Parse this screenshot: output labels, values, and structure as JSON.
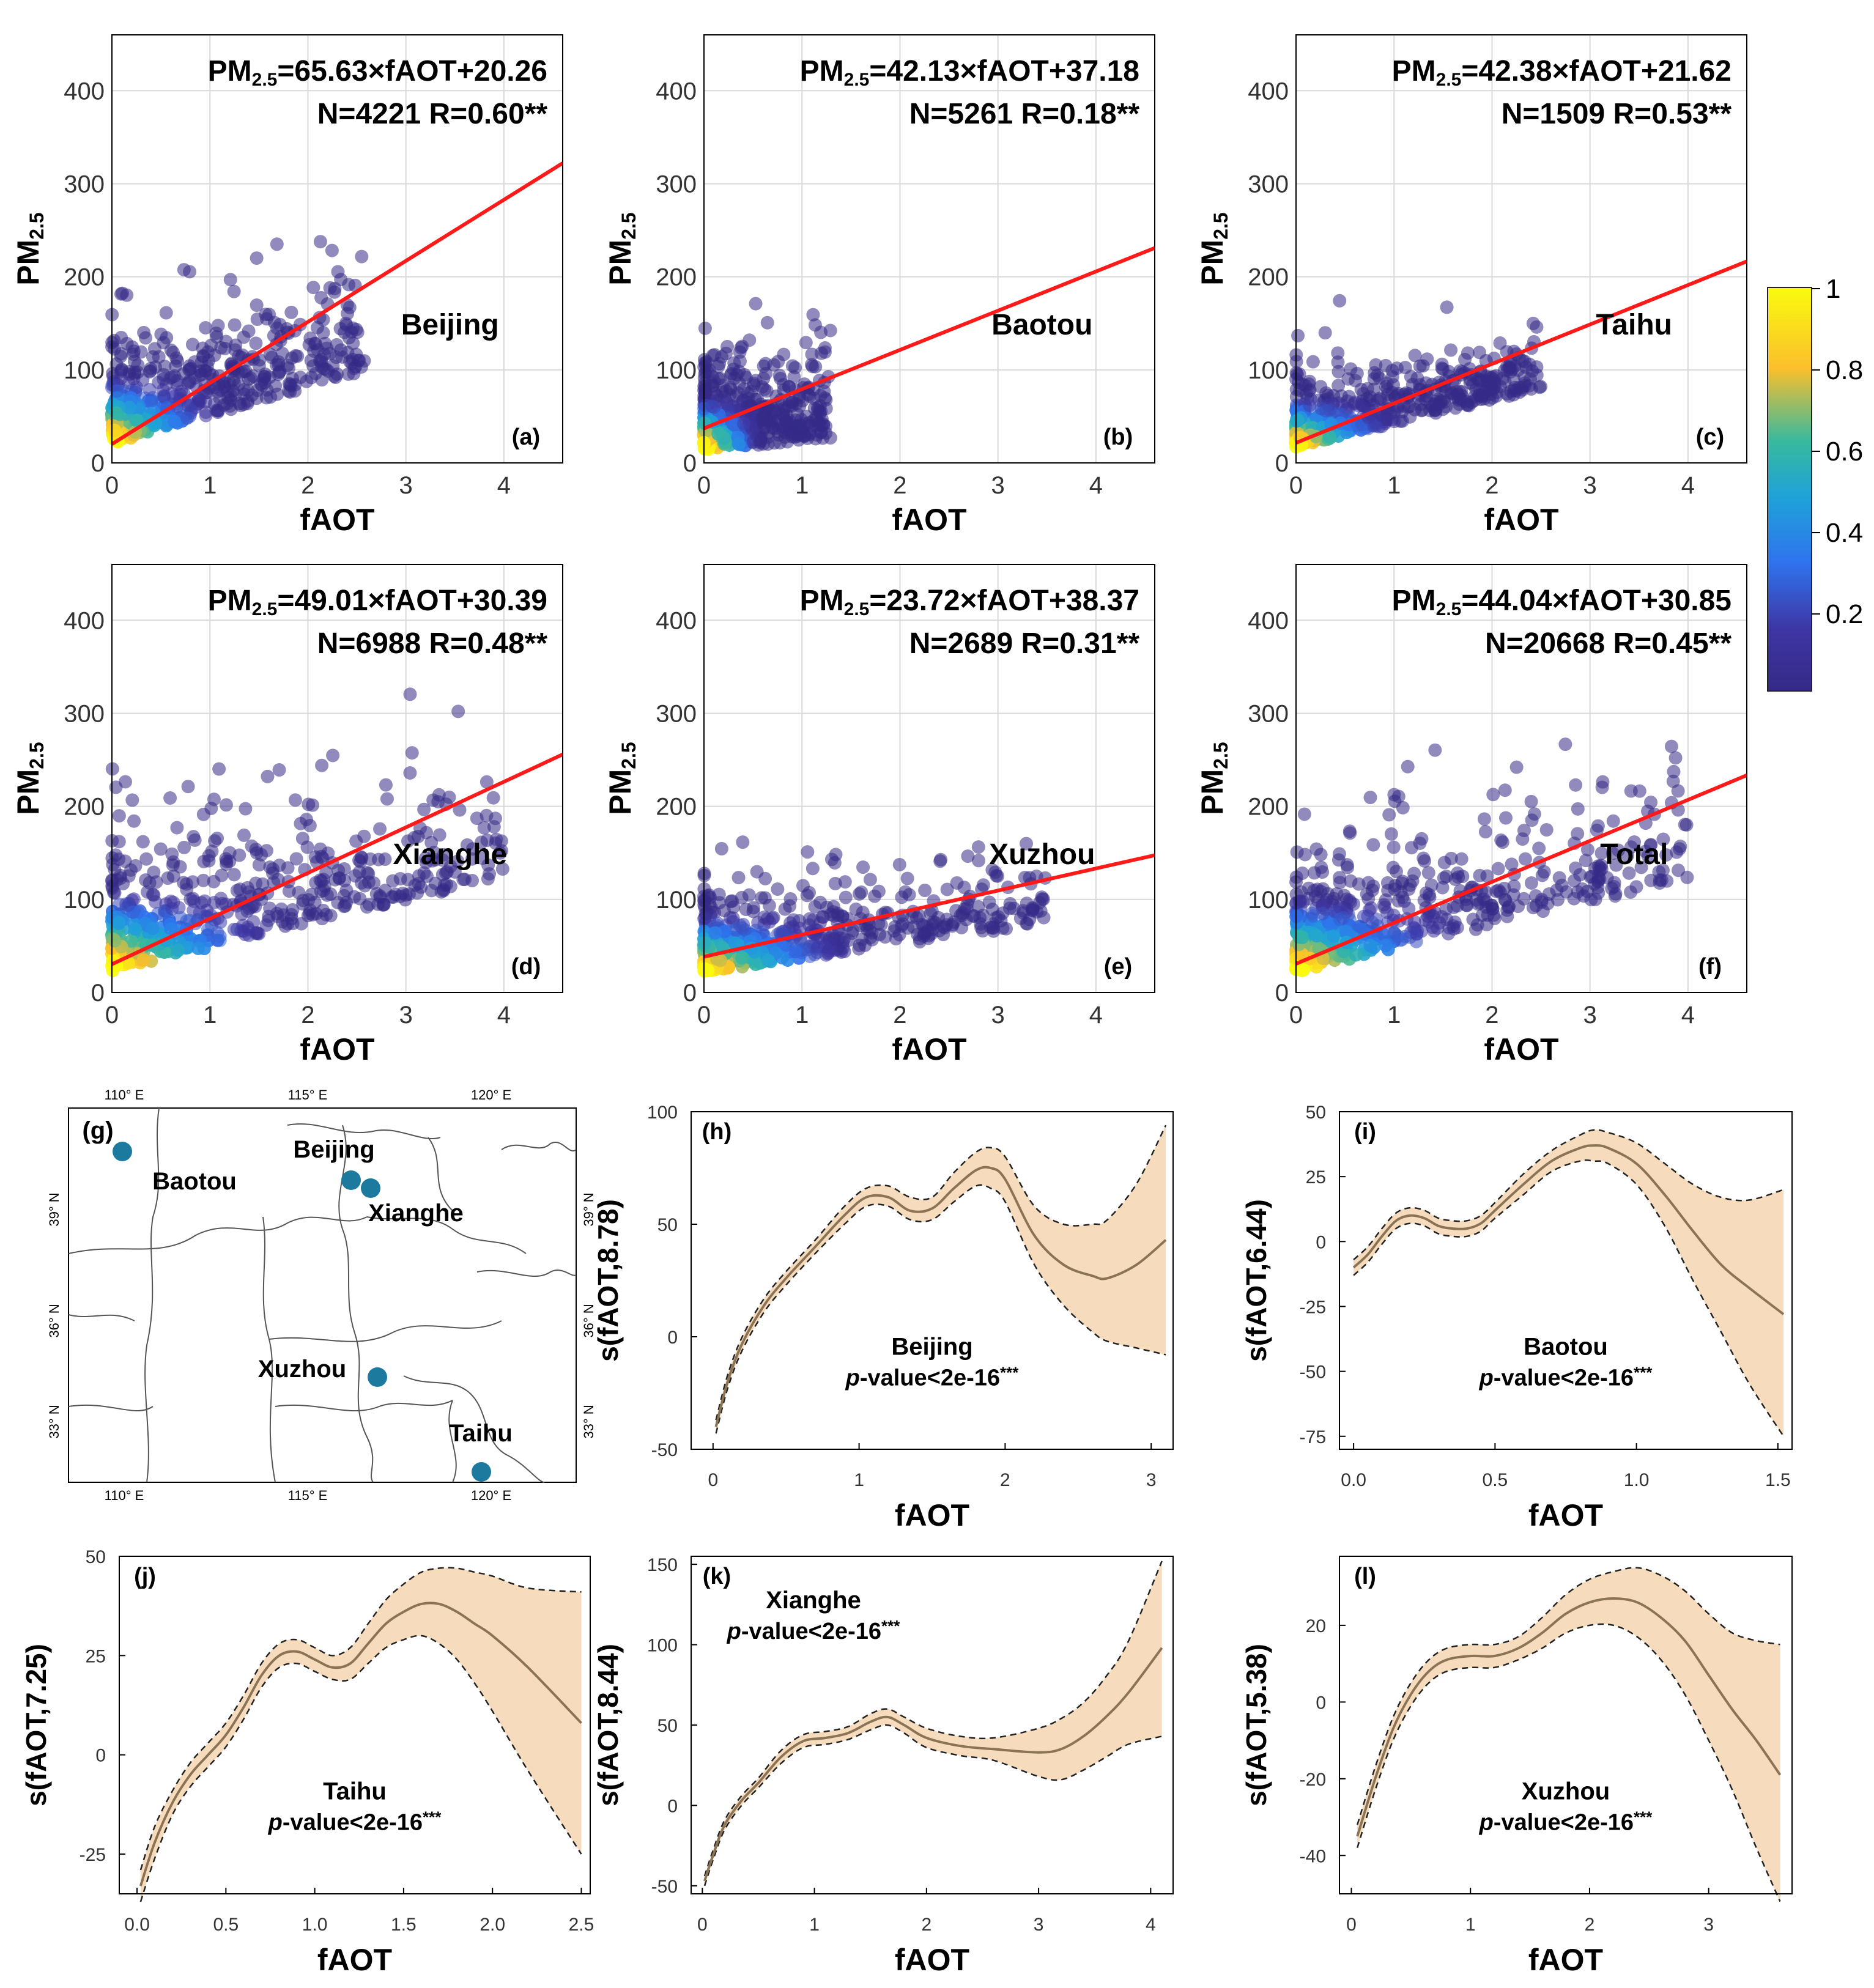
{
  "chart_data": [
    {
      "type": "scatter",
      "panel": "(a)",
      "label": "Beijing",
      "eq_prefix": "PM",
      "eq_sub": "2.5",
      "eq_rest": "=65.63×fAOT+20.26",
      "stats": "N=4221 R=0.60**",
      "slope": 65.63,
      "intercept": 20.26,
      "xlabel": "fAOT",
      "ylabel_main": "PM",
      "ylabel_sub": "2.5",
      "xlim": [
        0,
        4.6
      ],
      "ylim": [
        0,
        460
      ],
      "xticks": [
        0,
        1,
        2,
        3,
        4
      ],
      "yticks": [
        0,
        100,
        200,
        300,
        400
      ],
      "grid": true,
      "cloud": {
        "x_max": 2.6,
        "y_mean": 60,
        "y_spread": 48,
        "slope": 30
      }
    },
    {
      "type": "scatter",
      "panel": "(b)",
      "label": "Baotou",
      "eq_prefix": "PM",
      "eq_sub": "2.5",
      "eq_rest": "=42.13×fAOT+37.18",
      "stats": "N=5261 R=0.18**",
      "slope": 42.13,
      "intercept": 37.18,
      "xlabel": "fAOT",
      "ylabel_main": "PM",
      "ylabel_sub": "2.5",
      "xlim": [
        0,
        4.6
      ],
      "ylim": [
        0,
        460
      ],
      "xticks": [
        0,
        1,
        2,
        3,
        4
      ],
      "yticks": [
        0,
        100,
        200,
        300,
        400
      ],
      "grid": true,
      "cloud": {
        "x_max": 1.3,
        "y_mean": 45,
        "y_spread": 45,
        "slope": 10
      }
    },
    {
      "type": "scatter",
      "panel": "(c)",
      "label": "Taihu",
      "eq_prefix": "PM",
      "eq_sub": "2.5",
      "eq_rest": "=42.38×fAOT+21.62",
      "stats": "N=1509 R=0.53**",
      "slope": 42.38,
      "intercept": 21.62,
      "xlabel": "fAOT",
      "ylabel_main": "PM",
      "ylabel_sub": "2.5",
      "xlim": [
        0,
        4.6
      ],
      "ylim": [
        0,
        460
      ],
      "xticks": [
        0,
        1,
        2,
        3,
        4
      ],
      "yticks": [
        0,
        100,
        200,
        300,
        400
      ],
      "grid": true,
      "cloud": {
        "x_max": 2.5,
        "y_mean": 45,
        "y_spread": 30,
        "slope": 25
      }
    },
    {
      "type": "scatter",
      "panel": "(d)",
      "label": "Xianghe",
      "eq_prefix": "PM",
      "eq_sub": "2.5",
      "eq_rest": "=49.01×fAOT+30.39",
      "stats": "N=6988 R=0.48**",
      "slope": 49.01,
      "intercept": 30.39,
      "xlabel": "fAOT",
      "ylabel_main": "PM",
      "ylabel_sub": "2.5",
      "xlim": [
        0,
        4.6
      ],
      "ylim": [
        0,
        460
      ],
      "xticks": [
        0,
        1,
        2,
        3,
        4
      ],
      "yticks": [
        0,
        100,
        200,
        300,
        400
      ],
      "grid": true,
      "cloud": {
        "x_max": 4.0,
        "y_mean": 70,
        "y_spread": 60,
        "slope": 25
      }
    },
    {
      "type": "scatter",
      "panel": "(e)",
      "label": "Xuzhou",
      "eq_prefix": "PM",
      "eq_sub": "2.5",
      "eq_rest": "=23.72×fAOT+38.37",
      "stats": "N=2689 R=0.31**",
      "slope": 23.72,
      "intercept": 38.37,
      "xlabel": "fAOT",
      "ylabel_main": "PM",
      "ylabel_sub": "2.5",
      "xlim": [
        0,
        4.6
      ],
      "ylim": [
        0,
        460
      ],
      "xticks": [
        0,
        1,
        2,
        3,
        4
      ],
      "yticks": [
        0,
        100,
        200,
        300,
        400
      ],
      "grid": true,
      "cloud": {
        "x_max": 3.5,
        "y_mean": 55,
        "y_spread": 35,
        "slope": 15
      }
    },
    {
      "type": "scatter",
      "panel": "(f)",
      "label": "Total",
      "eq_prefix": "PM",
      "eq_sub": "2.5",
      "eq_rest": "=44.04×fAOT+30.85",
      "stats": "N=20668 R=0.45**",
      "slope": 44.04,
      "intercept": 30.85,
      "xlabel": "fAOT",
      "ylabel_main": "PM",
      "ylabel_sub": "2.5",
      "xlim": [
        0,
        4.6
      ],
      "ylim": [
        0,
        460
      ],
      "xticks": [
        0,
        1,
        2,
        3,
        4
      ],
      "yticks": [
        0,
        100,
        200,
        300,
        400
      ],
      "grid": true,
      "cloud": {
        "x_max": 4.0,
        "y_mean": 65,
        "y_spread": 55,
        "slope": 25
      }
    },
    {
      "type": "line",
      "panel": "(h)",
      "site": "Beijing",
      "pval_italic": "p",
      "pval_rest": "-value<2e-16",
      "pval_sup": "***",
      "text_pos": "center",
      "xlabel": "fAOT",
      "ylabel": "s(fAOT,8.78)",
      "xlim": [
        -0.15,
        3.15
      ],
      "ylim": [
        -50,
        100
      ],
      "xticks": [
        0,
        1,
        2,
        3
      ],
      "yticks": [
        -50,
        0,
        50,
        100
      ],
      "x": [
        0.02,
        0.1,
        0.2,
        0.35,
        0.5,
        0.7,
        0.9,
        1.05,
        1.2,
        1.35,
        1.5,
        1.65,
        1.8,
        1.9,
        2.0,
        2.2,
        2.4,
        2.6,
        2.7,
        2.9,
        3.1
      ],
      "y": [
        -40,
        -20,
        -3,
        14,
        26,
        40,
        54,
        62,
        62,
        56,
        57,
        66,
        74,
        75,
        70,
        45,
        32,
        27,
        26,
        32,
        43
      ],
      "lower": [
        -43,
        -23,
        -6,
        11,
        23,
        37,
        50,
        58,
        58,
        52,
        52,
        60,
        67,
        66,
        60,
        32,
        14,
        2,
        -2,
        -5,
        -8
      ],
      "upper": [
        -37,
        -17,
        0,
        17,
        29,
        43,
        58,
        66,
        67,
        62,
        62,
        73,
        82,
        84,
        80,
        58,
        50,
        50,
        52,
        68,
        94
      ]
    },
    {
      "type": "line",
      "panel": "(i)",
      "site": "Baotou",
      "pval_italic": "p",
      "pval_rest": "-value<2e-16",
      "pval_sup": "***",
      "text_pos": "center",
      "xlabel": "fAOT",
      "ylabel": "s(fAOT,6.44)",
      "xlim": [
        -0.05,
        1.55
      ],
      "ylim": [
        -80,
        50
      ],
      "xticks": [
        0.0,
        0.5,
        1.0,
        1.5
      ],
      "yticks": [
        -75,
        -50,
        -25,
        0,
        25,
        50
      ],
      "x": [
        0.0,
        0.05,
        0.1,
        0.15,
        0.2,
        0.25,
        0.3,
        0.35,
        0.4,
        0.45,
        0.5,
        0.6,
        0.7,
        0.8,
        0.85,
        0.9,
        1.0,
        1.1,
        1.2,
        1.3,
        1.4,
        1.52
      ],
      "y": [
        -10,
        -5,
        2,
        8,
        10,
        9,
        6,
        5,
        5,
        7,
        12,
        22,
        31,
        36,
        37,
        36,
        30,
        18,
        4,
        -9,
        -18,
        -28
      ],
      "lower": [
        -13,
        -8,
        -1,
        5,
        7,
        6,
        3,
        2,
        2,
        4,
        9,
        18,
        27,
        31,
        31,
        30,
        22,
        6,
        -15,
        -35,
        -55,
        -75
      ],
      "upper": [
        -7,
        -2,
        5,
        11,
        13,
        12,
        9,
        8,
        8,
        10,
        15,
        26,
        35,
        41,
        43,
        42,
        38,
        30,
        22,
        17,
        16,
        20
      ]
    },
    {
      "type": "line",
      "panel": "(j)",
      "site": "Taihu",
      "pval_italic": "p",
      "pval_rest": "-value<2e-16",
      "pval_sup": "***",
      "text_pos": "center",
      "xlabel": "fAOT",
      "ylabel": "s(fAOT,7.25)",
      "xlim": [
        -0.1,
        2.55
      ],
      "ylim": [
        -35,
        50
      ],
      "xticks": [
        0.0,
        0.5,
        1.0,
        1.5,
        2.0,
        2.5
      ],
      "yticks": [
        -25,
        0,
        25,
        50
      ],
      "x": [
        0.02,
        0.1,
        0.2,
        0.3,
        0.4,
        0.5,
        0.6,
        0.7,
        0.8,
        0.9,
        1.0,
        1.1,
        1.2,
        1.3,
        1.4,
        1.5,
        1.6,
        1.7,
        1.8,
        1.9,
        2.0,
        2.2,
        2.5
      ],
      "y": [
        -33,
        -22,
        -12,
        -5,
        0,
        5,
        12,
        20,
        25,
        26,
        24,
        22,
        23,
        28,
        33,
        36,
        38,
        38,
        36,
        33,
        30,
        22,
        8
      ],
      "lower": [
        -37,
        -26,
        -15,
        -8,
        -3,
        2,
        9,
        17,
        22,
        23,
        21,
        19,
        19,
        23,
        27,
        29,
        30,
        28,
        24,
        18,
        11,
        -4,
        -25
      ],
      "upper": [
        -29,
        -18,
        -9,
        -2,
        3,
        8,
        15,
        23,
        28,
        29,
        27,
        25,
        27,
        33,
        39,
        43,
        46,
        47,
        47,
        46,
        45,
        42,
        41
      ]
    },
    {
      "type": "line",
      "panel": "(k)",
      "site": "Xianghe",
      "pval_italic": "p",
      "pval_rest": "-value<2e-16",
      "pval_sup": "***",
      "text_pos": "top-left",
      "xlabel": "fAOT",
      "ylabel": "s(fAOT,8.44)",
      "xlim": [
        -0.1,
        4.2
      ],
      "ylim": [
        -55,
        155
      ],
      "xticks": [
        0,
        1,
        2,
        3,
        4
      ],
      "yticks": [
        -50,
        0,
        50,
        100,
        150
      ],
      "x": [
        0.02,
        0.1,
        0.2,
        0.35,
        0.5,
        0.7,
        0.9,
        1.1,
        1.3,
        1.5,
        1.65,
        1.8,
        2.0,
        2.3,
        2.6,
        3.0,
        3.2,
        3.4,
        3.6,
        3.8,
        4.1
      ],
      "y": [
        -47,
        -30,
        -12,
        3,
        14,
        30,
        40,
        42,
        45,
        52,
        55,
        50,
        42,
        37,
        35,
        33,
        35,
        43,
        55,
        70,
        98
      ],
      "lower": [
        -50,
        -33,
        -15,
        0,
        11,
        26,
        36,
        38,
        41,
        47,
        50,
        45,
        36,
        31,
        28,
        18,
        16,
        22,
        30,
        38,
        43
      ],
      "upper": [
        -44,
        -27,
        -9,
        6,
        17,
        34,
        44,
        46,
        49,
        57,
        60,
        55,
        48,
        43,
        42,
        48,
        54,
        64,
        80,
        102,
        152
      ]
    },
    {
      "type": "line",
      "panel": "(l)",
      "site": "Xuzhou",
      "pval_italic": "p",
      "pval_rest": "-value<2e-16",
      "pval_sup": "***",
      "text_pos": "center",
      "xlabel": "fAOT",
      "ylabel": "s(fAOT,5.38)",
      "xlim": [
        -0.1,
        3.7
      ],
      "ylim": [
        -50,
        38
      ],
      "xticks": [
        0,
        1,
        2,
        3
      ],
      "yticks": [
        -40,
        -20,
        0,
        20
      ],
      "x": [
        0.05,
        0.2,
        0.35,
        0.5,
        0.65,
        0.8,
        1.0,
        1.2,
        1.4,
        1.6,
        1.8,
        2.0,
        2.2,
        2.4,
        2.6,
        2.8,
        3.0,
        3.2,
        3.4,
        3.6
      ],
      "y": [
        -35,
        -20,
        -7,
        2,
        8,
        11,
        12,
        12,
        14,
        18,
        23,
        26,
        27,
        26,
        22,
        16,
        7,
        -2,
        -10,
        -19
      ],
      "lower": [
        -38,
        -23,
        -10,
        -1,
        5,
        8,
        9,
        9,
        11,
        14,
        18,
        20,
        20,
        17,
        11,
        2,
        -10,
        -23,
        -38,
        -52
      ],
      "upper": [
        -32,
        -17,
        -4,
        5,
        11,
        14,
        15,
        15,
        17,
        22,
        28,
        32,
        34,
        35,
        33,
        29,
        23,
        18,
        16,
        15
      ]
    }
  ],
  "colorbar": {
    "ticks": [
      "1",
      "0.8",
      "0.6",
      "0.4",
      "0.2"
    ],
    "colors": [
      "#f9fb0e",
      "#fbbf2c",
      "#38b99e",
      "#1fa2d8",
      "#2f74ee",
      "#3e35a3",
      "#352a87"
    ]
  },
  "map": {
    "panel": "(g)",
    "lon_ticks": [
      "110° E",
      "115° E",
      "120° E"
    ],
    "lat_ticks": [
      "39° N",
      "36° N",
      "33° N"
    ],
    "sites": [
      {
        "name": "Baotou",
        "lon": 109.6,
        "lat": 40.6
      },
      {
        "name": "Beijing",
        "lon": 116.4,
        "lat": 40.0
      },
      {
        "name": "Xianghe",
        "lon": 117.0,
        "lat": 39.8
      },
      {
        "name": "Xuzhou",
        "lon": 117.2,
        "lat": 34.2
      },
      {
        "name": "Taihu",
        "lon": 120.2,
        "lat": 31.4
      }
    ],
    "site_color": "#1b7a9e"
  },
  "colors": {
    "regression": "#ff1a1a",
    "gam_line": "#8b7355",
    "gam_band": "#f6dcbd",
    "scatter_dark": "#2d2a84"
  }
}
